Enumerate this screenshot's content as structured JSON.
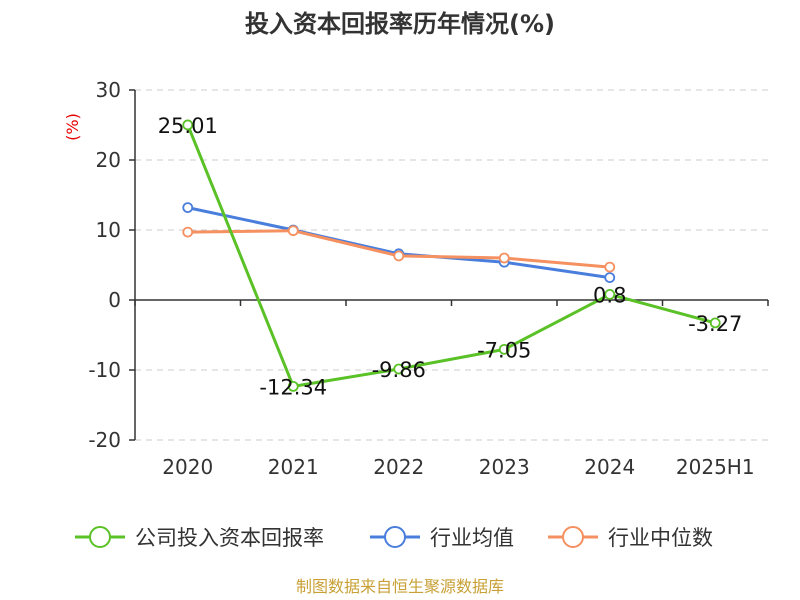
{
  "chart_data": {
    "type": "line",
    "title": "投入资本回报率历年情况(%)",
    "ylabel": "(%)",
    "categories": [
      "2020",
      "2021",
      "2022",
      "2023",
      "2024",
      "2025H1"
    ],
    "ylim": [
      -20,
      30
    ],
    "yticks": [
      30,
      20,
      10,
      0,
      -10,
      -20
    ],
    "grid": true,
    "legend_position": "bottom",
    "series": [
      {
        "name": "公司投入资本回报率",
        "color": "#5ac126",
        "values": [
          25.01,
          -12.34,
          -9.86,
          -7.05,
          0.8,
          -3.27
        ],
        "labels": [
          "25.01",
          "-12.34",
          "-9.86",
          "-7.05",
          "0.8",
          "-3.27"
        ]
      },
      {
        "name": "行业均值",
        "color": "#4a7edc",
        "values": [
          13.2,
          10.0,
          6.6,
          5.4,
          3.2,
          null
        ]
      },
      {
        "name": "行业中位数",
        "color": "#f59060",
        "values": [
          9.7,
          9.9,
          6.3,
          6.0,
          4.7,
          null
        ]
      }
    ]
  },
  "source": "制图数据来自恒生聚源数据库"
}
